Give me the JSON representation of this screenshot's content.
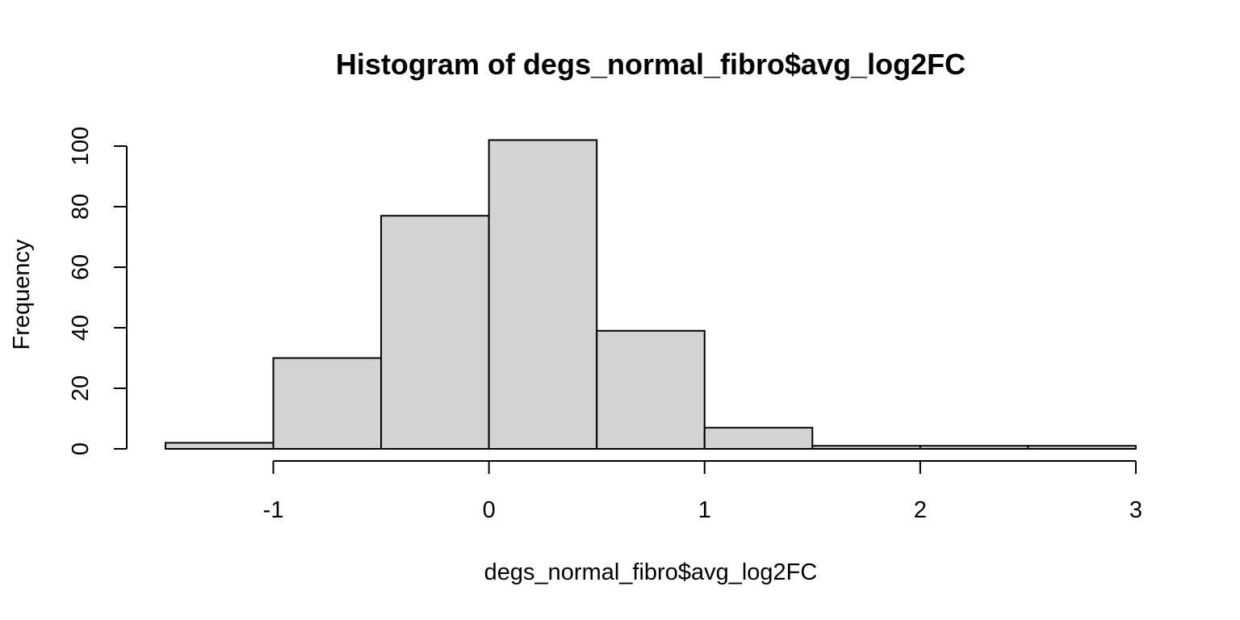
{
  "chart_data": {
    "type": "bar",
    "title": "Histogram of degs_normal_fibro$avg_log2FC",
    "xlabel": "degs_normal_fibro$avg_log2FC",
    "ylabel": "Frequency",
    "bins": [
      {
        "start": -1.5,
        "end": -1.0,
        "count": 2
      },
      {
        "start": -1.0,
        "end": -0.5,
        "count": 30
      },
      {
        "start": -0.5,
        "end": 0.0,
        "count": 77
      },
      {
        "start": 0.0,
        "end": 0.5,
        "count": 102
      },
      {
        "start": 0.5,
        "end": 1.0,
        "count": 39
      },
      {
        "start": 1.0,
        "end": 1.5,
        "count": 7
      },
      {
        "start": 1.5,
        "end": 2.0,
        "count": 1
      },
      {
        "start": 2.0,
        "end": 2.5,
        "count": 1
      },
      {
        "start": 2.5,
        "end": 3.0,
        "count": 1
      }
    ],
    "xlim": [
      -1.5,
      3.0
    ],
    "ylim": [
      0,
      100
    ],
    "x_ticks": [
      -1,
      0,
      1,
      2,
      3
    ],
    "x_tick_labels": [
      "-1",
      "0",
      "1",
      "2",
      "3"
    ],
    "y_ticks": [
      0,
      20,
      40,
      60,
      80,
      100
    ],
    "y_tick_labels": [
      "0",
      "20",
      "40",
      "60",
      "80",
      "100"
    ],
    "bar_color": "#d3d3d3",
    "border_color": "#000000"
  }
}
